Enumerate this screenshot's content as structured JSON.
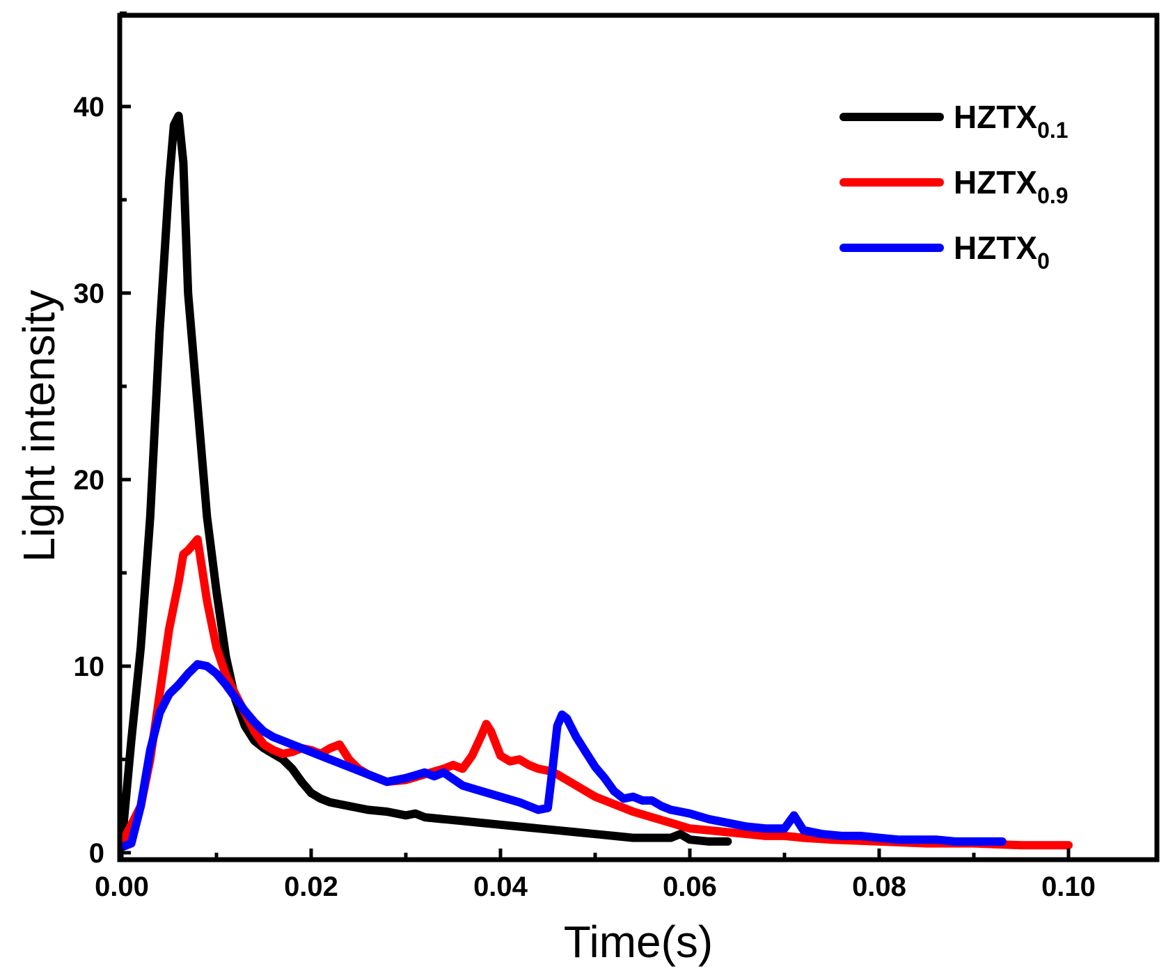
{
  "chart_data": {
    "type": "line",
    "title": "",
    "xlabel": "Time(s)",
    "ylabel": "Light intensity",
    "xlim": [
      0,
      0.11
    ],
    "ylim": [
      0,
      45
    ],
    "grid": false,
    "legend_position": "top-right",
    "x_tick_values": [
      0,
      0.02,
      0.04,
      0.06,
      0.08,
      0.1
    ],
    "x_tick_labels": [
      "0.00",
      "0.02",
      "0.04",
      "0.06",
      "0.08",
      "0.10"
    ],
    "y_tick_values": [
      0,
      10,
      20,
      30,
      40
    ],
    "y_tick_labels": [
      "0",
      "10",
      "20",
      "30",
      "40"
    ],
    "series": [
      {
        "name": "HZTX",
        "subscript": "0.1",
        "color": "#000000",
        "x": [
          0,
          0.001,
          0.002,
          0.003,
          0.004,
          0.005,
          0.0055,
          0.006,
          0.0065,
          0.007,
          0.008,
          0.009,
          0.01,
          0.011,
          0.012,
          0.013,
          0.014,
          0.015,
          0.016,
          0.017,
          0.018,
          0.019,
          0.02,
          0.021,
          0.022,
          0.024,
          0.026,
          0.028,
          0.03,
          0.031,
          0.032,
          0.034,
          0.036,
          0.038,
          0.04,
          0.042,
          0.044,
          0.046,
          0.048,
          0.05,
          0.052,
          0.054,
          0.056,
          0.058,
          0.059,
          0.06,
          0.062,
          0.064
        ],
        "y": [
          0.5,
          6,
          11,
          18,
          28,
          36,
          39,
          39.5,
          37,
          30,
          24,
          18,
          14,
          10.5,
          8.2,
          6.8,
          6.0,
          5.6,
          5.3,
          5.0,
          4.5,
          3.8,
          3.2,
          2.9,
          2.7,
          2.5,
          2.3,
          2.2,
          2.0,
          2.1,
          1.9,
          1.8,
          1.7,
          1.6,
          1.5,
          1.4,
          1.3,
          1.2,
          1.1,
          1.0,
          0.9,
          0.8,
          0.8,
          0.8,
          1.0,
          0.7,
          0.6,
          0.6
        ]
      },
      {
        "name": "HZTX",
        "subscript": "0.9",
        "color": "#ff0000",
        "x": [
          0,
          0.001,
          0.002,
          0.003,
          0.004,
          0.005,
          0.006,
          0.0065,
          0.007,
          0.0075,
          0.008,
          0.009,
          0.01,
          0.011,
          0.012,
          0.013,
          0.014,
          0.015,
          0.016,
          0.017,
          0.018,
          0.019,
          0.02,
          0.021,
          0.022,
          0.023,
          0.024,
          0.025,
          0.026,
          0.028,
          0.03,
          0.032,
          0.034,
          0.035,
          0.036,
          0.037,
          0.038,
          0.0385,
          0.039,
          0.04,
          0.041,
          0.042,
          0.043,
          0.044,
          0.045,
          0.046,
          0.048,
          0.05,
          0.052,
          0.054,
          0.056,
          0.058,
          0.06,
          0.062,
          0.064,
          0.066,
          0.068,
          0.07,
          0.072,
          0.075,
          0.08,
          0.085,
          0.09,
          0.095,
          0.1
        ],
        "y": [
          0.5,
          1.5,
          2.5,
          5,
          8.5,
          12,
          14.5,
          16,
          16.2,
          16.5,
          16.8,
          13.5,
          11,
          9.5,
          8.5,
          7.5,
          6.5,
          5.8,
          5.5,
          5.3,
          5.4,
          5.6,
          5.5,
          5.3,
          5.6,
          5.8,
          5.0,
          4.5,
          4.2,
          3.8,
          3.9,
          4.2,
          4.5,
          4.7,
          4.5,
          5.2,
          6.3,
          6.9,
          6.5,
          5.2,
          4.9,
          5.0,
          4.7,
          4.5,
          4.4,
          4.2,
          3.6,
          3.0,
          2.6,
          2.2,
          1.9,
          1.6,
          1.3,
          1.2,
          1.1,
          1.0,
          0.9,
          0.9,
          0.8,
          0.7,
          0.6,
          0.5,
          0.5,
          0.4,
          0.4
        ]
      },
      {
        "name": "HZTX",
        "subscript": "0",
        "color": "#0000ff",
        "x": [
          0,
          0.001,
          0.002,
          0.003,
          0.004,
          0.005,
          0.006,
          0.007,
          0.008,
          0.009,
          0.01,
          0.011,
          0.012,
          0.013,
          0.014,
          0.015,
          0.016,
          0.017,
          0.018,
          0.019,
          0.02,
          0.022,
          0.024,
          0.026,
          0.028,
          0.03,
          0.032,
          0.033,
          0.034,
          0.036,
          0.038,
          0.04,
          0.042,
          0.044,
          0.045,
          0.0455,
          0.046,
          0.0465,
          0.047,
          0.048,
          0.049,
          0.05,
          0.051,
          0.052,
          0.053,
          0.054,
          0.055,
          0.056,
          0.057,
          0.058,
          0.059,
          0.06,
          0.062,
          0.064,
          0.066,
          0.068,
          0.07,
          0.071,
          0.072,
          0.074,
          0.076,
          0.078,
          0.08,
          0.082,
          0.084,
          0.086,
          0.088,
          0.09,
          0.093
        ],
        "y": [
          0.3,
          0.5,
          2.5,
          5.5,
          7.5,
          8.5,
          9.0,
          9.6,
          10.1,
          10.0,
          9.6,
          9.0,
          8.3,
          7.6,
          7.0,
          6.5,
          6.2,
          6.0,
          5.8,
          5.6,
          5.4,
          5.0,
          4.6,
          4.2,
          3.8,
          4.0,
          4.3,
          4.1,
          4.3,
          3.6,
          3.3,
          3.0,
          2.7,
          2.3,
          2.4,
          4.5,
          6.8,
          7.4,
          7.2,
          6.2,
          5.4,
          4.6,
          4.0,
          3.3,
          2.9,
          3.0,
          2.8,
          2.8,
          2.5,
          2.3,
          2.2,
          2.1,
          1.8,
          1.6,
          1.4,
          1.3,
          1.3,
          2.0,
          1.2,
          1.0,
          0.9,
          0.9,
          0.8,
          0.7,
          0.7,
          0.7,
          0.6,
          0.6,
          0.6
        ]
      }
    ]
  }
}
